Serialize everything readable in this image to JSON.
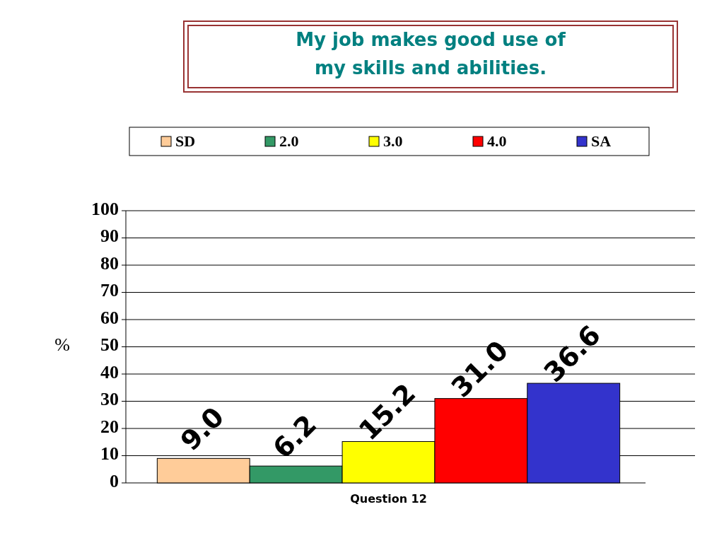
{
  "chart_data": {
    "type": "bar",
    "title": "My job makes good use of\nmy skills and abilities.",
    "categories": [
      "Question 12"
    ],
    "ylabel": "%",
    "ylim": [
      0,
      100
    ],
    "yticks": [
      0,
      10,
      20,
      30,
      40,
      50,
      60,
      70,
      80,
      90,
      100
    ],
    "grid": "y",
    "legend": "top",
    "series": [
      {
        "name": "SD",
        "color": "#ffcc99",
        "values": [
          9.0
        ],
        "value_labels": [
          "9.0"
        ]
      },
      {
        "name": "2.0",
        "color": "#339966",
        "values": [
          6.2
        ],
        "value_labels": [
          "6.2"
        ]
      },
      {
        "name": "3.0",
        "color": "#ffff00",
        "values": [
          15.2
        ],
        "value_labels": [
          "15.2"
        ]
      },
      {
        "name": "4.0",
        "color": "#ff0000",
        "values": [
          31.0
        ],
        "value_labels": [
          "31.0"
        ]
      },
      {
        "name": "SA",
        "color": "#3333cc",
        "values": [
          36.6
        ],
        "value_labels": [
          "36.6"
        ]
      }
    ]
  }
}
